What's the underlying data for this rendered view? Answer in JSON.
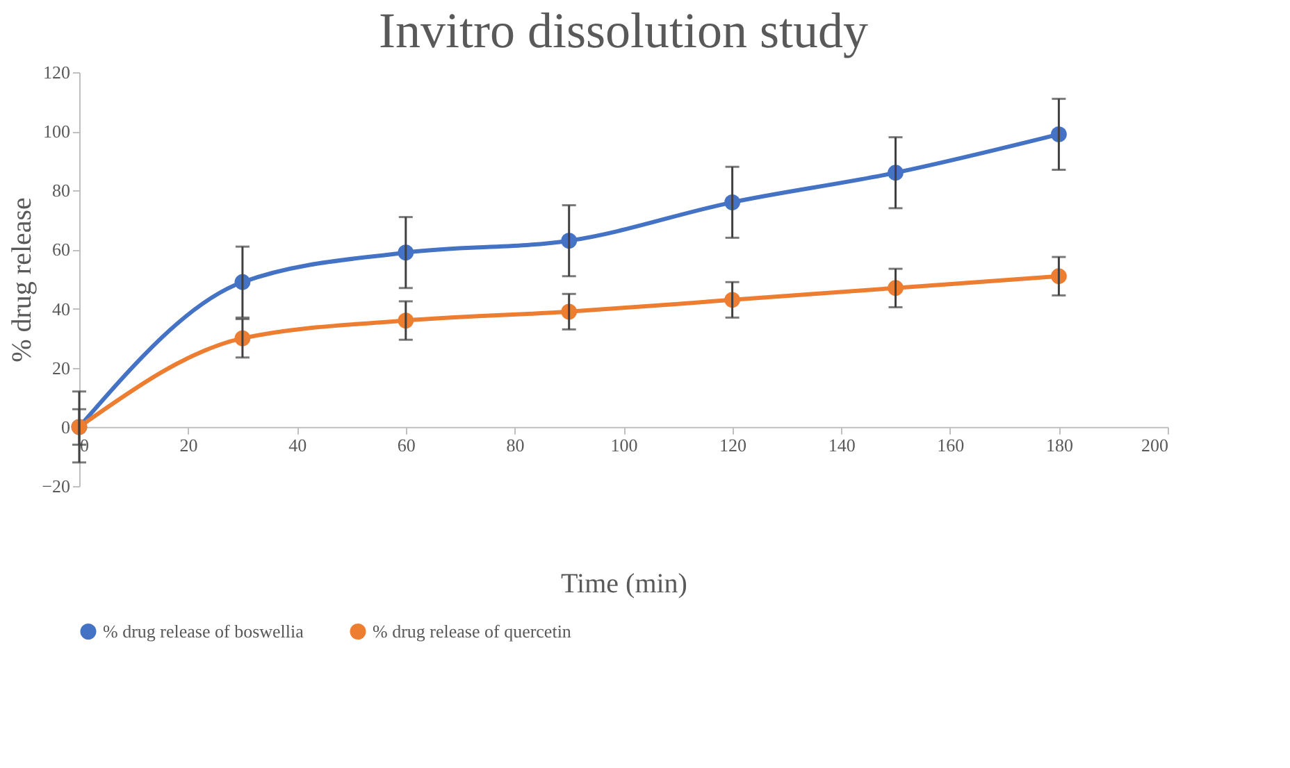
{
  "chart_data": {
    "type": "line",
    "title": "Invitro dissolution study",
    "xlabel": "Time (min)",
    "ylabel": "% drug release",
    "x": [
      0,
      30,
      60,
      90,
      120,
      150,
      180
    ],
    "series": [
      {
        "name": "% drug release of boswellia",
        "color": "#4472c4",
        "values": [
          0,
          49,
          59,
          63,
          76,
          86,
          99
        ],
        "errors": [
          12,
          12,
          12,
          12,
          12,
          12,
          12
        ]
      },
      {
        "name": "% drug release of quercetin",
        "color": "#ed7d31",
        "values": [
          0,
          30,
          36,
          39,
          43,
          47,
          51
        ],
        "errors": [
          6,
          6.5,
          6.5,
          6,
          6,
          6.5,
          6.5
        ]
      }
    ],
    "xlim": [
      0,
      200
    ],
    "xticks": [
      0,
      20,
      40,
      60,
      80,
      100,
      120,
      140,
      160,
      180,
      200
    ],
    "ylim": [
      -20,
      120
    ],
    "yticks": [
      -20,
      0,
      20,
      40,
      60,
      80,
      100,
      120
    ],
    "grid": false,
    "legend": "bottom",
    "marker": "circle",
    "line_style": "solid"
  }
}
